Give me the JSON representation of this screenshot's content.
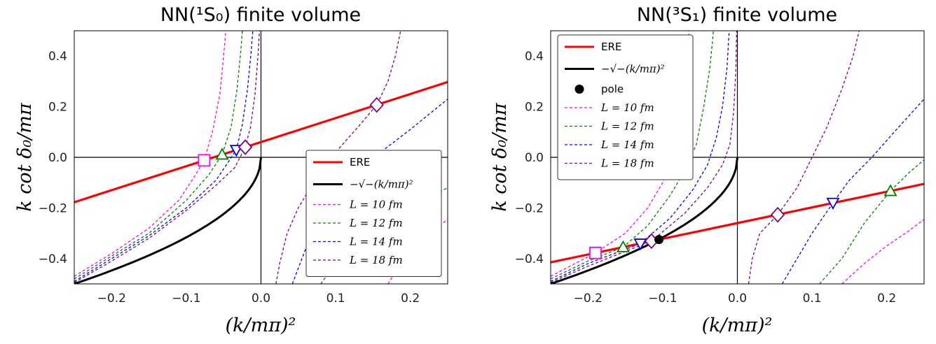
{
  "chart_data": [
    {
      "type": "line",
      "title": "NN(¹S₀) finite volume",
      "xlabel": "(k/mπ)²",
      "ylabel": "k cot δ₀/mπ",
      "xlim": [
        -0.25,
        0.25
      ],
      "ylim": [
        -0.5,
        0.5
      ],
      "xticks": [
        "−0.2",
        "−0.1",
        "0.0",
        "0.1",
        "0.2"
      ],
      "yticks": [
        "−0.4",
        "−0.2",
        "0.0",
        "0.2",
        "0.4"
      ],
      "legend_position": "lower-right",
      "ere": {
        "label": "ERE",
        "color": "#ff0000",
        "a": 0.06,
        "b": 0.95
      },
      "bound": {
        "label": "−√−(k/mπ)²",
        "color": "#000000"
      },
      "finite_volume": [
        {
          "label": "L = 10 fm",
          "color": "#ff00ff",
          "marker": "square",
          "intersection": [
            -0.076,
            -0.012
          ]
        },
        {
          "label": "L = 12 fm",
          "color": "#008000",
          "marker": "triangle-up",
          "intersection": [
            -0.052,
            0.011
          ]
        },
        {
          "label": "L = 14 fm",
          "color": "#0000ff",
          "marker": "triangle-down",
          "intersection": [
            -0.033,
            0.029
          ]
        },
        {
          "label": "L = 18 fm",
          "color": "#800080",
          "marker": "diamond",
          "intersection": [
            -0.021,
            0.04
          ]
        },
        {
          "label": "L = 18 fm",
          "color": "#800080",
          "marker": "diamond",
          "intersection": [
            0.155,
            0.207
          ],
          "in_legend": false
        }
      ],
      "finite_volume_curves": [
        {
          "color": "#ff00ff",
          "points": [
            [
              -0.25,
              -0.47
            ],
            [
              -0.2,
              -0.38
            ],
            [
              -0.15,
              -0.28
            ],
            [
              -0.11,
              -0.17
            ],
            [
              -0.09,
              -0.08
            ],
            [
              -0.076,
              -0.012
            ],
            [
              -0.065,
              0.1
            ],
            [
              -0.055,
              0.25
            ],
            [
              -0.05,
              0.4
            ],
            [
              -0.047,
              0.5
            ]
          ]
        },
        {
          "color": "#008000",
          "points": [
            [
              -0.25,
              -0.48
            ],
            [
              -0.2,
              -0.39
            ],
            [
              -0.15,
              -0.3
            ],
            [
              -0.1,
              -0.17
            ],
            [
              -0.07,
              -0.07
            ],
            [
              -0.052,
              0.011
            ],
            [
              -0.04,
              0.12
            ],
            [
              -0.032,
              0.27
            ],
            [
              -0.027,
              0.42
            ],
            [
              -0.025,
              0.5
            ]
          ]
        },
        {
          "color": "#0000ff",
          "points": [
            [
              -0.25,
              -0.49
            ],
            [
              -0.2,
              -0.4
            ],
            [
              -0.15,
              -0.31
            ],
            [
              -0.1,
              -0.2
            ],
            [
              -0.06,
              -0.09
            ],
            [
              -0.033,
              0.029
            ],
            [
              -0.025,
              0.13
            ],
            [
              -0.018,
              0.27
            ],
            [
              -0.013,
              0.42
            ],
            [
              -0.011,
              0.5
            ]
          ]
        },
        {
          "color": "#800080",
          "points": [
            [
              -0.25,
              -0.495
            ],
            [
              -0.2,
              -0.41
            ],
            [
              -0.15,
              -0.32
            ],
            [
              -0.1,
              -0.21
            ],
            [
              -0.06,
              -0.11
            ],
            [
              -0.035,
              -0.04
            ],
            [
              -0.021,
              0.04
            ],
            [
              -0.014,
              0.12
            ],
            [
              -0.008,
              0.25
            ],
            [
              -0.004,
              0.4
            ],
            [
              -0.002,
              0.5
            ]
          ]
        },
        {
          "color": "#800080",
          "points": [
            [
              0.02,
              -0.5
            ],
            [
              0.025,
              -0.42
            ],
            [
              0.035,
              -0.3
            ],
            [
              0.05,
              -0.2
            ],
            [
              0.07,
              -0.1
            ],
            [
              0.1,
              0.02
            ],
            [
              0.13,
              0.12
            ],
            [
              0.155,
              0.207
            ],
            [
              0.17,
              0.3
            ],
            [
              0.18,
              0.4
            ],
            [
              0.187,
              0.5
            ]
          ]
        },
        {
          "color": "#0000ff",
          "points": [
            [
              0.042,
              -0.5
            ],
            [
              0.06,
              -0.36
            ],
            [
              0.08,
              -0.25
            ],
            [
              0.1,
              -0.16
            ],
            [
              0.13,
              -0.06
            ],
            [
              0.16,
              0.02
            ],
            [
              0.2,
              0.11
            ],
            [
              0.25,
              0.23
            ]
          ]
        },
        {
          "color": "#008000",
          "points": [
            [
              0.08,
              -0.5
            ],
            [
              0.1,
              -0.42
            ],
            [
              0.13,
              -0.34
            ],
            [
              0.16,
              -0.27
            ],
            [
              0.2,
              -0.2
            ],
            [
              0.25,
              -0.12
            ]
          ]
        },
        {
          "color": "#ff00ff",
          "points": [
            [
              0.17,
              -0.5
            ],
            [
              0.2,
              -0.37
            ],
            [
              0.23,
              -0.29
            ],
            [
              0.25,
              -0.245
            ]
          ]
        }
      ]
    },
    {
      "type": "line",
      "title": "NN(³S₁) finite volume",
      "xlabel": "(k/mπ)²",
      "ylabel": "k cot δ₀/mπ",
      "xlim": [
        -0.25,
        0.25
      ],
      "ylim": [
        -0.5,
        0.5
      ],
      "xticks": [
        "−0.2",
        "−0.1",
        "0.0",
        "0.1",
        "0.2"
      ],
      "yticks": [
        "−0.4",
        "−0.2",
        "0.0",
        "0.2",
        "0.4"
      ],
      "legend_position": "upper-left",
      "ere": {
        "label": "ERE",
        "color": "#ff0000",
        "a": -0.26,
        "b": 0.62
      },
      "bound": {
        "label": "−√−(k/mπ)²",
        "color": "#000000"
      },
      "pole": {
        "label": "pole",
        "color": "#000000",
        "x": -0.105,
        "y": -0.325
      },
      "finite_volume": [
        {
          "label": "L = 10 fm",
          "color": "#ff00ff",
          "marker": "square",
          "intersection": [
            -0.19,
            -0.378
          ]
        },
        {
          "label": "L = 12 fm",
          "color": "#008000",
          "marker": "triangle-up",
          "intersection": [
            -0.153,
            -0.355
          ]
        },
        {
          "label": "L = 14 fm",
          "color": "#0000ff",
          "marker": "triangle-down",
          "intersection": [
            -0.13,
            -0.341
          ]
        },
        {
          "label": "L = 18 fm",
          "color": "#800080",
          "marker": "diamond",
          "intersection": [
            -0.115,
            -0.331
          ]
        },
        {
          "label": "L = 18 fm",
          "color": "#800080",
          "marker": "diamond",
          "intersection": [
            0.054,
            -0.227
          ],
          "in_legend": false
        },
        {
          "label": "L = 14 fm",
          "color": "#0000ff",
          "marker": "triangle-down",
          "intersection": [
            0.128,
            -0.18
          ],
          "in_legend": false
        },
        {
          "label": "L = 12 fm",
          "color": "#008000",
          "marker": "triangle-up",
          "intersection": [
            0.205,
            -0.133
          ],
          "in_legend": false
        }
      ],
      "finite_volume_curves": [
        {
          "color": "#ff00ff",
          "points": [
            [
              -0.25,
              -0.47
            ],
            [
              -0.19,
              -0.378
            ],
            [
              -0.15,
              -0.3
            ],
            [
              -0.12,
              -0.2
            ],
            [
              -0.1,
              -0.1
            ],
            [
              -0.088,
              0.0
            ],
            [
              -0.078,
              0.13
            ],
            [
              -0.07,
              0.3
            ],
            [
              -0.065,
              0.5
            ]
          ]
        },
        {
          "color": "#008000",
          "points": [
            [
              -0.25,
              -0.48
            ],
            [
              -0.2,
              -0.41
            ],
            [
              -0.153,
              -0.355
            ],
            [
              -0.12,
              -0.27
            ],
            [
              -0.09,
              -0.15
            ],
            [
              -0.07,
              -0.05
            ],
            [
              -0.055,
              0.05
            ],
            [
              -0.045,
              0.2
            ],
            [
              -0.037,
              0.35
            ],
            [
              -0.032,
              0.5
            ]
          ]
        },
        {
          "color": "#0000ff",
          "points": [
            [
              -0.25,
              -0.49
            ],
            [
              -0.2,
              -0.42
            ],
            [
              -0.13,
              -0.341
            ],
            [
              -0.09,
              -0.24
            ],
            [
              -0.06,
              -0.13
            ],
            [
              -0.04,
              -0.03
            ],
            [
              -0.028,
              0.08
            ],
            [
              -0.02,
              0.2
            ],
            [
              -0.014,
              0.35
            ],
            [
              -0.011,
              0.5
            ]
          ]
        },
        {
          "color": "#800080",
          "points": [
            [
              -0.25,
              -0.495
            ],
            [
              -0.2,
              -0.43
            ],
            [
              -0.115,
              -0.331
            ],
            [
              -0.07,
              -0.22
            ],
            [
              -0.04,
              -0.12
            ],
            [
              -0.02,
              -0.03
            ],
            [
              -0.01,
              0.05
            ],
            [
              -0.005,
              0.18
            ],
            [
              -0.002,
              0.35
            ],
            [
              -0.001,
              0.5
            ]
          ]
        },
        {
          "color": "#800080",
          "points": [
            [
              0.015,
              -0.5
            ],
            [
              0.02,
              -0.4
            ],
            [
              0.03,
              -0.3
            ],
            [
              0.054,
              -0.227
            ],
            [
              0.08,
              -0.12
            ],
            [
              0.1,
              0.0
            ],
            [
              0.12,
              0.12
            ],
            [
              0.14,
              0.27
            ],
            [
              0.155,
              0.4
            ],
            [
              0.163,
              0.5
            ]
          ]
        },
        {
          "color": "#0000ff",
          "points": [
            [
              0.06,
              -0.5
            ],
            [
              0.08,
              -0.4
            ],
            [
              0.1,
              -0.3
            ],
            [
              0.128,
              -0.18
            ],
            [
              0.15,
              -0.09
            ],
            [
              0.18,
              0.0
            ],
            [
              0.21,
              0.1
            ],
            [
              0.25,
              0.23
            ]
          ]
        },
        {
          "color": "#008000",
          "points": [
            [
              0.11,
              -0.5
            ],
            [
              0.14,
              -0.4
            ],
            [
              0.17,
              -0.26
            ],
            [
              0.205,
              -0.133
            ],
            [
              0.23,
              -0.06
            ],
            [
              0.25,
              -0.01
            ]
          ]
        },
        {
          "color": "#ff00ff",
          "points": [
            [
              0.14,
              -0.5
            ],
            [
              0.17,
              -0.42
            ],
            [
              0.2,
              -0.35
            ],
            [
              0.23,
              -0.29
            ],
            [
              0.25,
              -0.245
            ]
          ]
        }
      ]
    }
  ]
}
